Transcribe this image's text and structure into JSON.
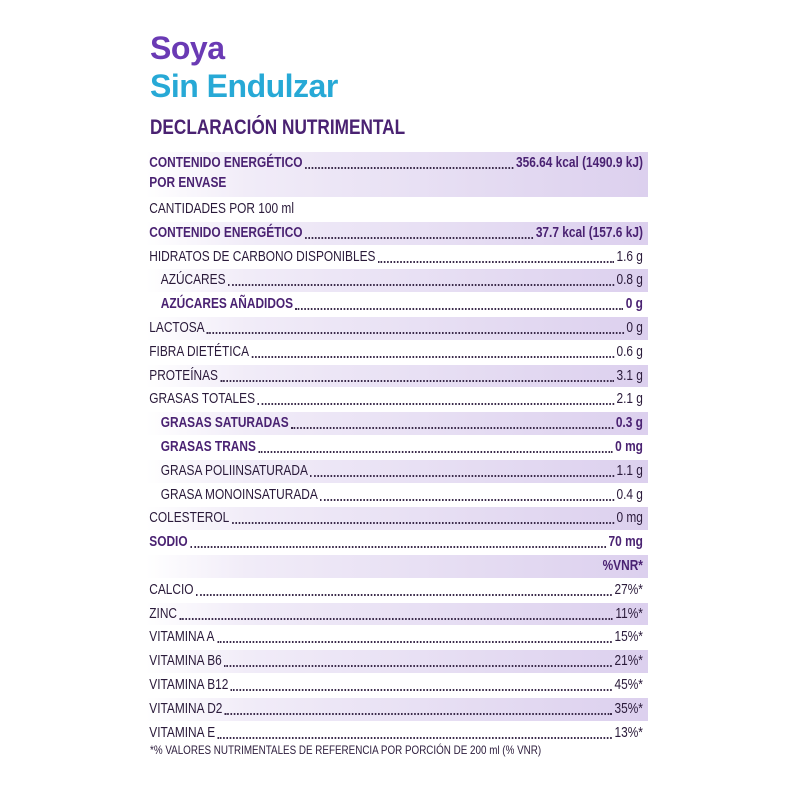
{
  "product": {
    "name_line1": "Soya",
    "name_line2": "Sin Endulzar"
  },
  "heading": "DECLARACIÓN NUTRIMENTAL",
  "energy_per_container": {
    "label_line1": "CONTENIDO ENERGÉTICO",
    "label_line2": "POR ENVASE",
    "value": "356.64 kcal (1490.9 kJ)"
  },
  "per_100ml_label": "CANTIDADES POR 100 ml",
  "rows": [
    {
      "label": "CONTENIDO ENERGÉTICO",
      "value": "37.7 kcal (157.6 kJ)"
    },
    {
      "label": "HIDRATOS DE CARBONO DISPONIBLES",
      "value": "1.6 g"
    },
    {
      "label": "AZÚCARES",
      "value": "0.8 g"
    },
    {
      "label": "AZÚCARES AÑADIDOS",
      "value": "0 g"
    },
    {
      "label": "LACTOSA",
      "value": "0 g"
    },
    {
      "label": "FIBRA DIETÉTICA",
      "value": "0.6 g"
    },
    {
      "label": "PROTEÍNAS",
      "value": "3.1 g"
    },
    {
      "label": "GRASAS TOTALES",
      "value": "2.1 g"
    },
    {
      "label": "GRASAS SATURADAS",
      "value": "0.3 g"
    },
    {
      "label": "GRASAS TRANS",
      "value": "0 mg"
    },
    {
      "label": "GRASA POLIINSATURADA",
      "value": "1.1 g"
    },
    {
      "label": "GRASA MONOINSATURADA",
      "value": "0.4 g"
    },
    {
      "label": "COLESTEROL",
      "value": "0 mg"
    },
    {
      "label": "SODIO",
      "value": "70 mg"
    }
  ],
  "vnr_header": "%VNR*",
  "vnr_rows": [
    {
      "label": "CALCIO",
      "value": "27%*"
    },
    {
      "label": "ZINC",
      "value": "11%*"
    },
    {
      "label": "VITAMINA A",
      "value": "15%*"
    },
    {
      "label": "VITAMINA B6",
      "value": "21%*"
    },
    {
      "label": "VITAMINA B12",
      "value": "45%*"
    },
    {
      "label": "VITAMINA D2",
      "value": "35%*"
    },
    {
      "label": "VITAMINA E",
      "value": "13%*"
    }
  ],
  "footnote": "*% VALORES NUTRIMENTALES DE REFERENCIA POR PORCIÓN DE 200 ml (% VNR)"
}
